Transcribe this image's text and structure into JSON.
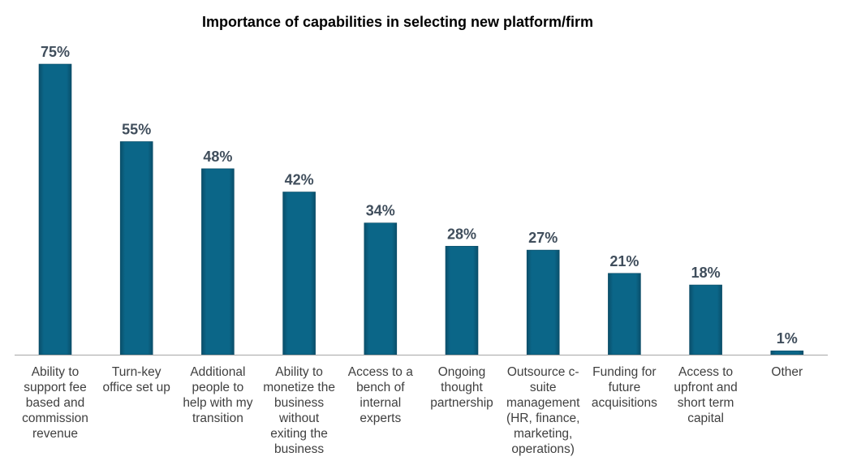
{
  "chart_data": {
    "type": "bar",
    "title": "Importance of capabilities in selecting new platform/firm",
    "xlabel": "",
    "ylabel": "",
    "ylim": [
      0,
      75
    ],
    "grid": false,
    "bar_color": "#08607f",
    "categories": [
      "Ability to\nsupport fee\nbased and\ncommission\nrevenue",
      "Turn-key\noffice set up",
      "Additional\npeople to\nhelp with my\ntransition",
      "Ability to\nmonetize the\nbusiness\nwithout\nexiting the\nbusiness",
      "Access to a\nbench of\ninternal\nexperts",
      "Ongoing\nthought\npartnership",
      "Outsource  c-\nsuite\nmanagement\n(HR, finance,\nmarketing,\noperations)",
      "Funding for\nfuture\nacquisitions",
      "Access to\nupfront and\nshort term\ncapital",
      "Other"
    ],
    "values": [
      75,
      55,
      48,
      42,
      34,
      28,
      27,
      21,
      18,
      1
    ],
    "value_labels": [
      "75%",
      "55%",
      "48%",
      "42%",
      "34%",
      "28%",
      "27%",
      "21%",
      "18%",
      "1%"
    ]
  }
}
